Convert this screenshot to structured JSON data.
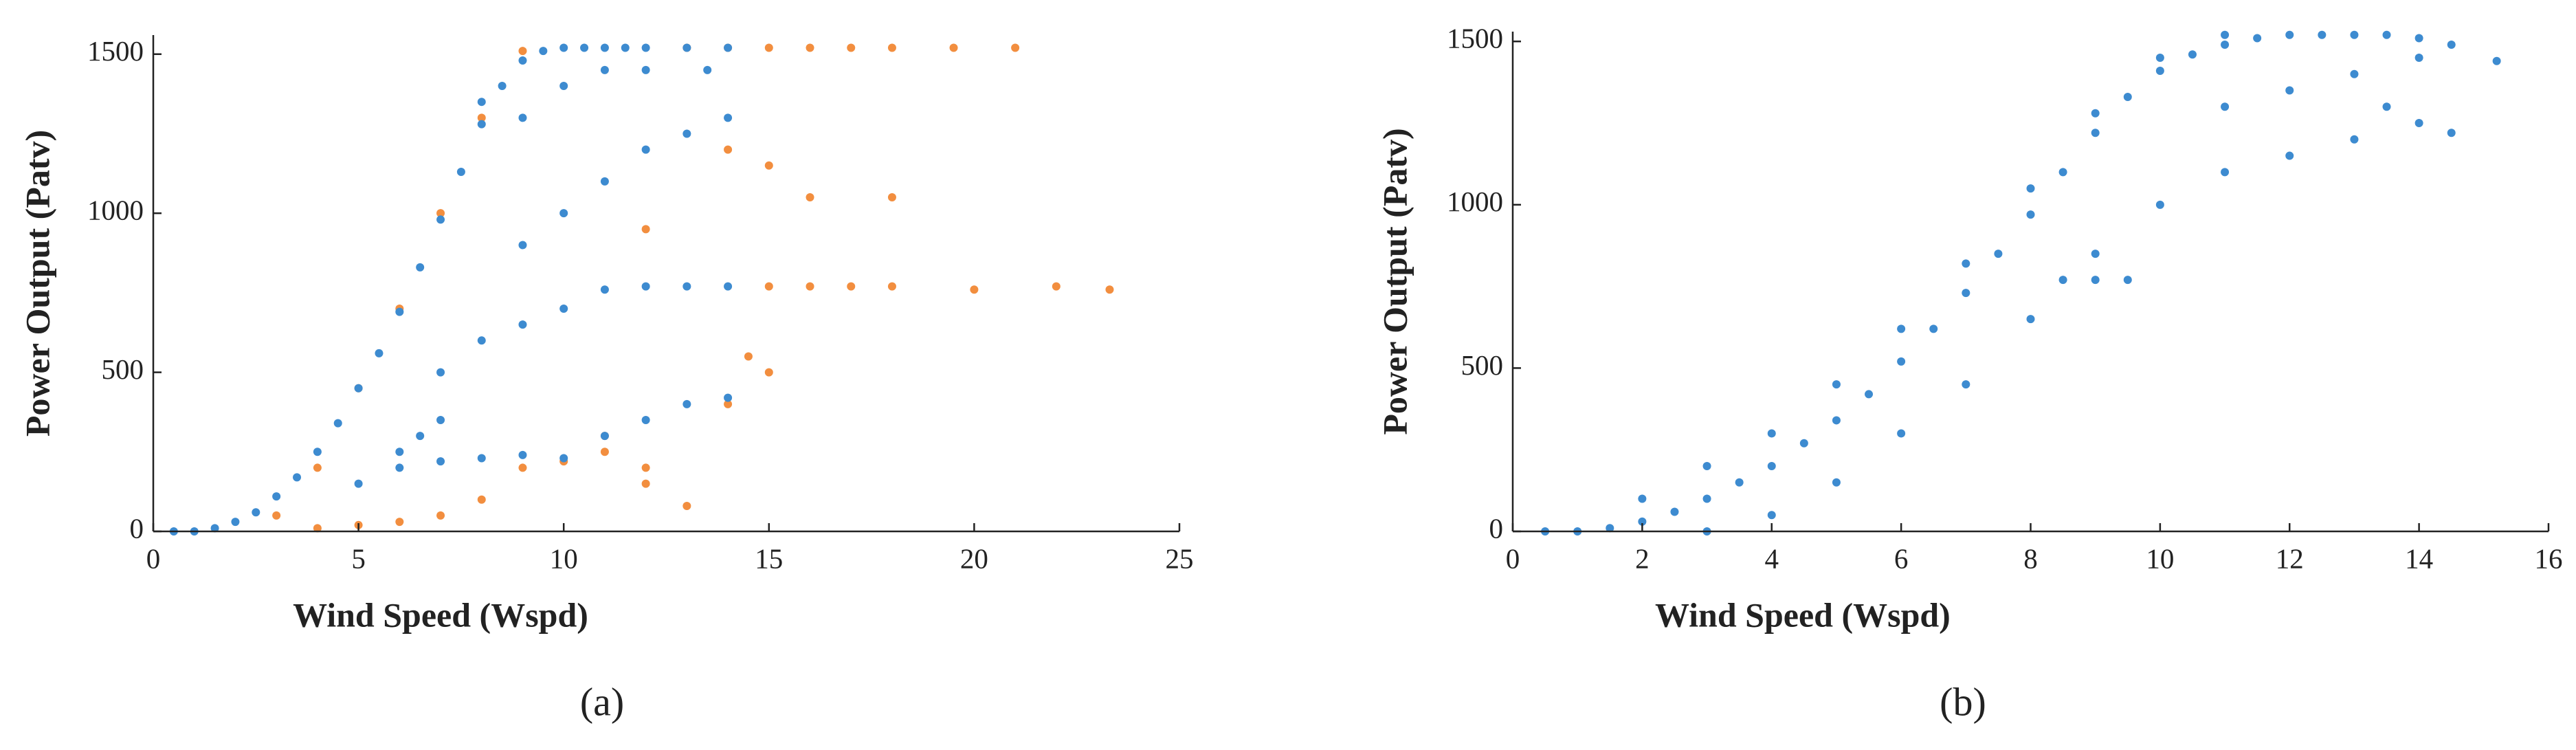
{
  "chart_data": [
    {
      "type": "scatter",
      "caption": "(a)",
      "xlabel": "Wind Speed (Wspd)",
      "ylabel": "Power Output (Patv)",
      "xlim": [
        0,
        25
      ],
      "ylim": [
        0,
        1560
      ],
      "xticks": [
        0,
        5,
        10,
        15,
        20,
        25
      ],
      "yticks": [
        0,
        500,
        1000,
        1500
      ],
      "series": [
        {
          "color": "#f28e3f",
          "x": [
            3,
            4,
            5,
            6,
            7,
            8,
            9,
            4,
            5,
            6,
            7,
            8,
            9,
            10,
            11,
            12,
            13,
            13,
            14,
            15,
            16,
            17,
            18,
            19.5,
            21,
            15,
            16,
            17,
            18,
            20,
            22,
            23.3,
            14,
            15,
            16,
            12,
            14,
            14.5,
            11,
            12,
            15,
            18
          ],
          "values": [
            50,
            200,
            450,
            700,
            1000,
            1300,
            1510,
            10,
            20,
            30,
            50,
            100,
            200,
            220,
            250,
            150,
            80,
            1520,
            1520,
            1520,
            1520,
            1520,
            1520,
            1520,
            1520,
            770,
            770,
            770,
            770,
            760,
            770,
            760,
            1200,
            1150,
            1050,
            950,
            400,
            550,
            300,
            200,
            500,
            1050
          ]
        },
        {
          "color": "#3d8bd0",
          "x": [
            0.5,
            1,
            1.5,
            2,
            2.5,
            3,
            3.5,
            4,
            4.5,
            5,
            5.5,
            6,
            6.5,
            7,
            7.5,
            8,
            8.5,
            9,
            9.5,
            10,
            10.5,
            11,
            11.5,
            12,
            13,
            14,
            6,
            7,
            8,
            9,
            10,
            11,
            12,
            13,
            14,
            7,
            8,
            9,
            10,
            11,
            12,
            13,
            14,
            9,
            10,
            11,
            12,
            13,
            14,
            8,
            9,
            10,
            11,
            12,
            13.5,
            5,
            6,
            6.5,
            7
          ],
          "values": [
            0,
            0,
            10,
            30,
            60,
            110,
            170,
            250,
            340,
            450,
            560,
            690,
            830,
            980,
            1130,
            1280,
            1400,
            1480,
            1510,
            1520,
            1520,
            1520,
            1520,
            1520,
            1520,
            1520,
            200,
            220,
            230,
            240,
            230,
            300,
            350,
            400,
            420,
            500,
            600,
            650,
            700,
            760,
            770,
            770,
            770,
            900,
            1000,
            1100,
            1200,
            1250,
            1300,
            1350,
            1300,
            1400,
            1450,
            1450,
            1450,
            150,
            250,
            300,
            350
          ]
        }
      ]
    },
    {
      "type": "scatter",
      "caption": "(b)",
      "xlabel": "Wind Speed (Wspd)",
      "ylabel": "Power Output (Patv)",
      "xlim": [
        0,
        16
      ],
      "ylim": [
        0,
        1530
      ],
      "xticks": [
        0,
        2,
        4,
        6,
        8,
        10,
        12,
        14,
        16
      ],
      "yticks": [
        0,
        500,
        1000,
        1500
      ],
      "series": [
        {
          "color": "#3d8bd0",
          "x": [
            0.5,
            1,
            1.5,
            2,
            2.5,
            3,
            3.5,
            4,
            4.5,
            5,
            5.5,
            6,
            6.5,
            7,
            7.5,
            8,
            8.5,
            9,
            9.5,
            10,
            10.5,
            11,
            11.5,
            12,
            12.5,
            13,
            13.5,
            14,
            14.5,
            15.2,
            3,
            4,
            5,
            6,
            7,
            8,
            9,
            10,
            11,
            12,
            13,
            14,
            14.5,
            2,
            3,
            4,
            5,
            6,
            7,
            8,
            9,
            10,
            11,
            8.5,
            9,
            9.5,
            11,
            12,
            13,
            14,
            13.5
          ],
          "values": [
            0,
            0,
            10,
            30,
            60,
            100,
            150,
            200,
            270,
            340,
            420,
            520,
            620,
            730,
            850,
            970,
            1100,
            1220,
            1330,
            1410,
            1460,
            1490,
            1510,
            1520,
            1520,
            1520,
            1520,
            1510,
            1490,
            1440,
            0,
            50,
            150,
            300,
            450,
            650,
            850,
            1000,
            1100,
            1150,
            1200,
            1250,
            1220,
            100,
            200,
            300,
            450,
            620,
            820,
            1050,
            1280,
            1450,
            1520,
            770,
            770,
            770,
            1300,
            1350,
            1400,
            1450,
            1300
          ]
        }
      ]
    }
  ]
}
